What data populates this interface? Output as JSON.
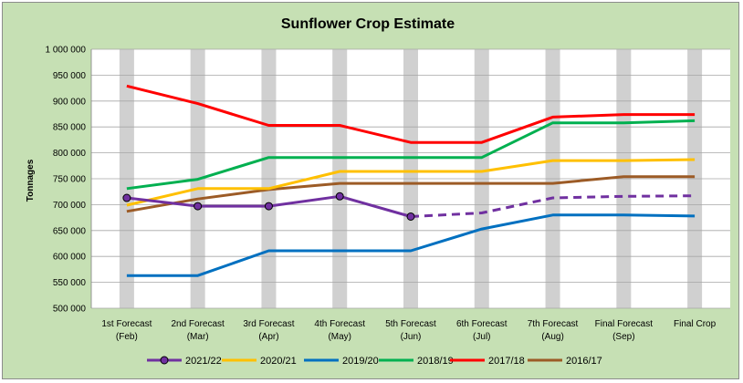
{
  "chart_data": {
    "type": "line",
    "title": "Sunflower Crop Estimate",
    "ylabel": "Tonnages",
    "xlabel": "",
    "ylim": [
      500000,
      1000000
    ],
    "yticks": [
      500000,
      550000,
      600000,
      650000,
      700000,
      750000,
      800000,
      850000,
      900000,
      950000,
      1000000
    ],
    "ytick_labels": [
      "500 000",
      "550 000",
      "600 000",
      "650 000",
      "700 000",
      "750 000",
      "800 000",
      "850 000",
      "900 000",
      "950 000",
      "1 000 000"
    ],
    "categories": [
      [
        "1st Forecast",
        "(Feb)"
      ],
      [
        "2nd Forecast",
        "(Mar)"
      ],
      [
        "3rd Forecast",
        "(Apr)"
      ],
      [
        "4th Forecast",
        "(May)"
      ],
      [
        "5th Forecast",
        "(Jun)"
      ],
      [
        "6th Forecast",
        "(Jul)"
      ],
      [
        "7th Forecast",
        "(Aug)"
      ],
      [
        "Final Forecast",
        "(Sep)"
      ],
      [
        "Final Crop",
        ""
      ]
    ],
    "grid": true,
    "legend_position": "bottom",
    "series": [
      {
        "name": "2021/22",
        "color": "#7030a0",
        "values": [
          713000,
          697000,
          697000,
          716000,
          677000,
          null,
          null,
          null,
          null
        ],
        "markers": true,
        "projection": [
          null,
          null,
          null,
          null,
          677000,
          684000,
          713000,
          716000,
          717000
        ]
      },
      {
        "name": "2020/21",
        "color": "#ffc000",
        "values": [
          699000,
          731000,
          731000,
          764000,
          764000,
          764000,
          785000,
          785000,
          787000
        ]
      },
      {
        "name": "2019/20",
        "color": "#0070c0",
        "values": [
          563000,
          563000,
          611000,
          611000,
          611000,
          653000,
          680000,
          680000,
          678000
        ]
      },
      {
        "name": "2018/19",
        "color": "#00b050",
        "values": [
          731000,
          749000,
          791000,
          791000,
          791000,
          791000,
          858000,
          858000,
          862000
        ]
      },
      {
        "name": "2017/18",
        "color": "#ff0000",
        "values": [
          929000,
          895000,
          853000,
          853000,
          820000,
          820000,
          869000,
          874000,
          874000
        ]
      },
      {
        "name": "2016/17",
        "color": "#9c5b26",
        "values": [
          687000,
          711000,
          729000,
          741000,
          741000,
          741000,
          741000,
          754000,
          754000
        ]
      }
    ]
  }
}
